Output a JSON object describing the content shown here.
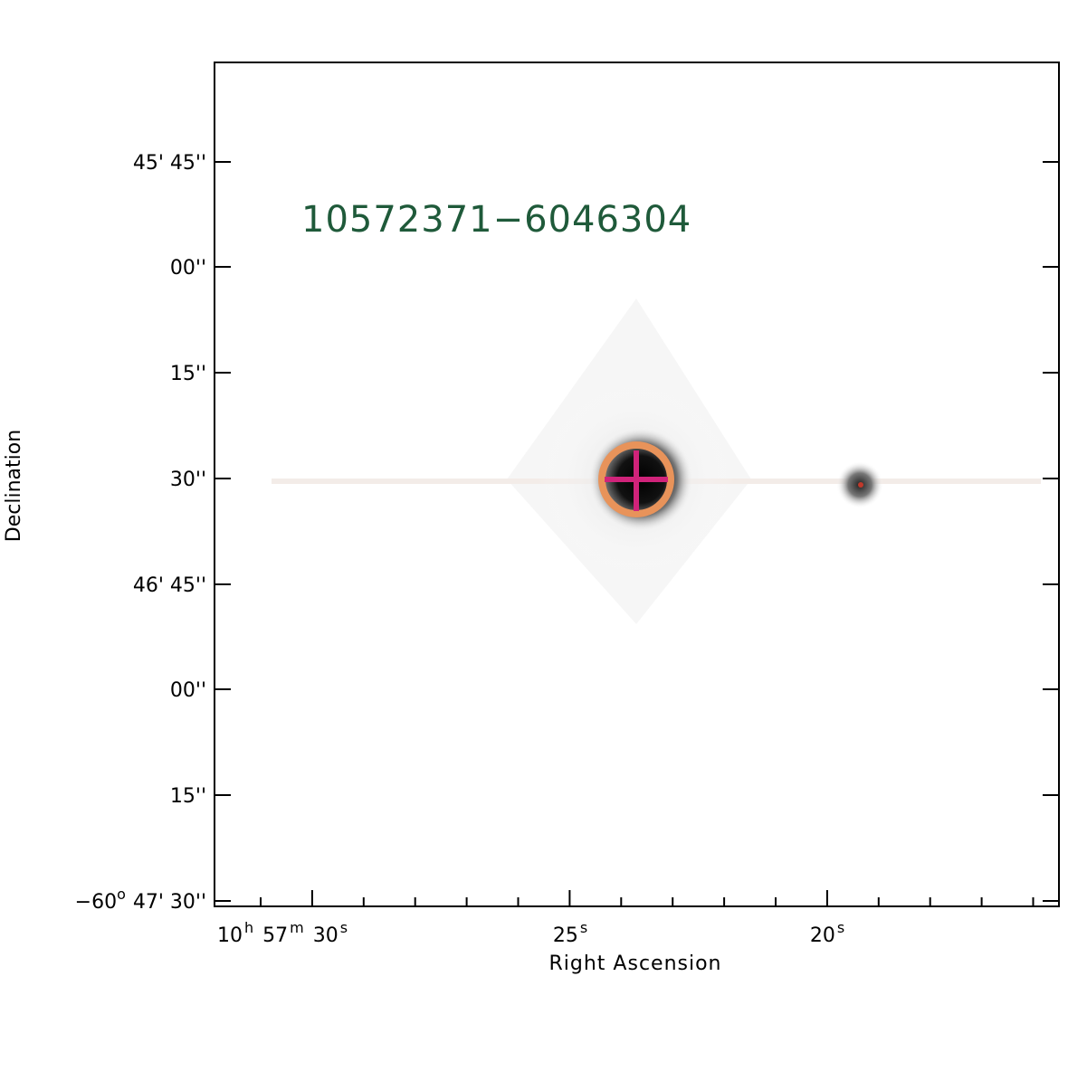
{
  "annotation": "10572371−6046304",
  "x_axis": {
    "label": "Right Ascension",
    "ticks": [
      [
        {
          "text": "10",
          "sup": "h"
        },
        {
          "text": "57",
          "sup": "m"
        },
        {
          "text": "30",
          "sup": "s"
        }
      ],
      [
        {
          "text": "25",
          "sup": "s"
        }
      ],
      [
        {
          "text": "20",
          "sup": "s"
        }
      ]
    ]
  },
  "y_axis": {
    "label": "Declination",
    "ticks": [
      "45' 45''",
      "00''",
      "15''",
      "30''",
      "46' 45''",
      "00''",
      "15''",
      "47' 30''"
    ],
    "degrees": {
      "text": "−60",
      "sup": "o"
    }
  }
}
